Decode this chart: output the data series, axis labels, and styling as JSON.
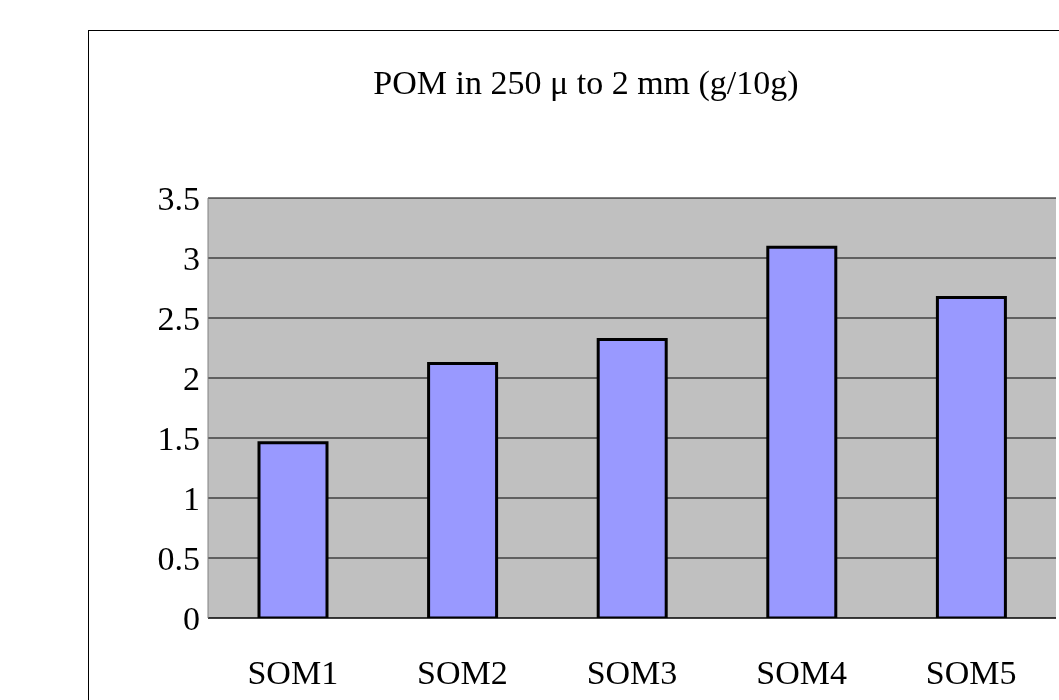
{
  "chart_data": {
    "type": "bar",
    "title": "POM in 250 μ to 2 mm (g/10g)",
    "categories": [
      "SOM1",
      "SOM2",
      "SOM3",
      "SOM4",
      "SOM5"
    ],
    "values": [
      1.46,
      2.12,
      2.32,
      3.09,
      2.67
    ],
    "color": "#9999ff",
    "ylim": [
      0,
      3.5
    ],
    "yticks": [
      0,
      0.5,
      1,
      1.5,
      2,
      2.5,
      3,
      3.5
    ],
    "grid": "y"
  }
}
